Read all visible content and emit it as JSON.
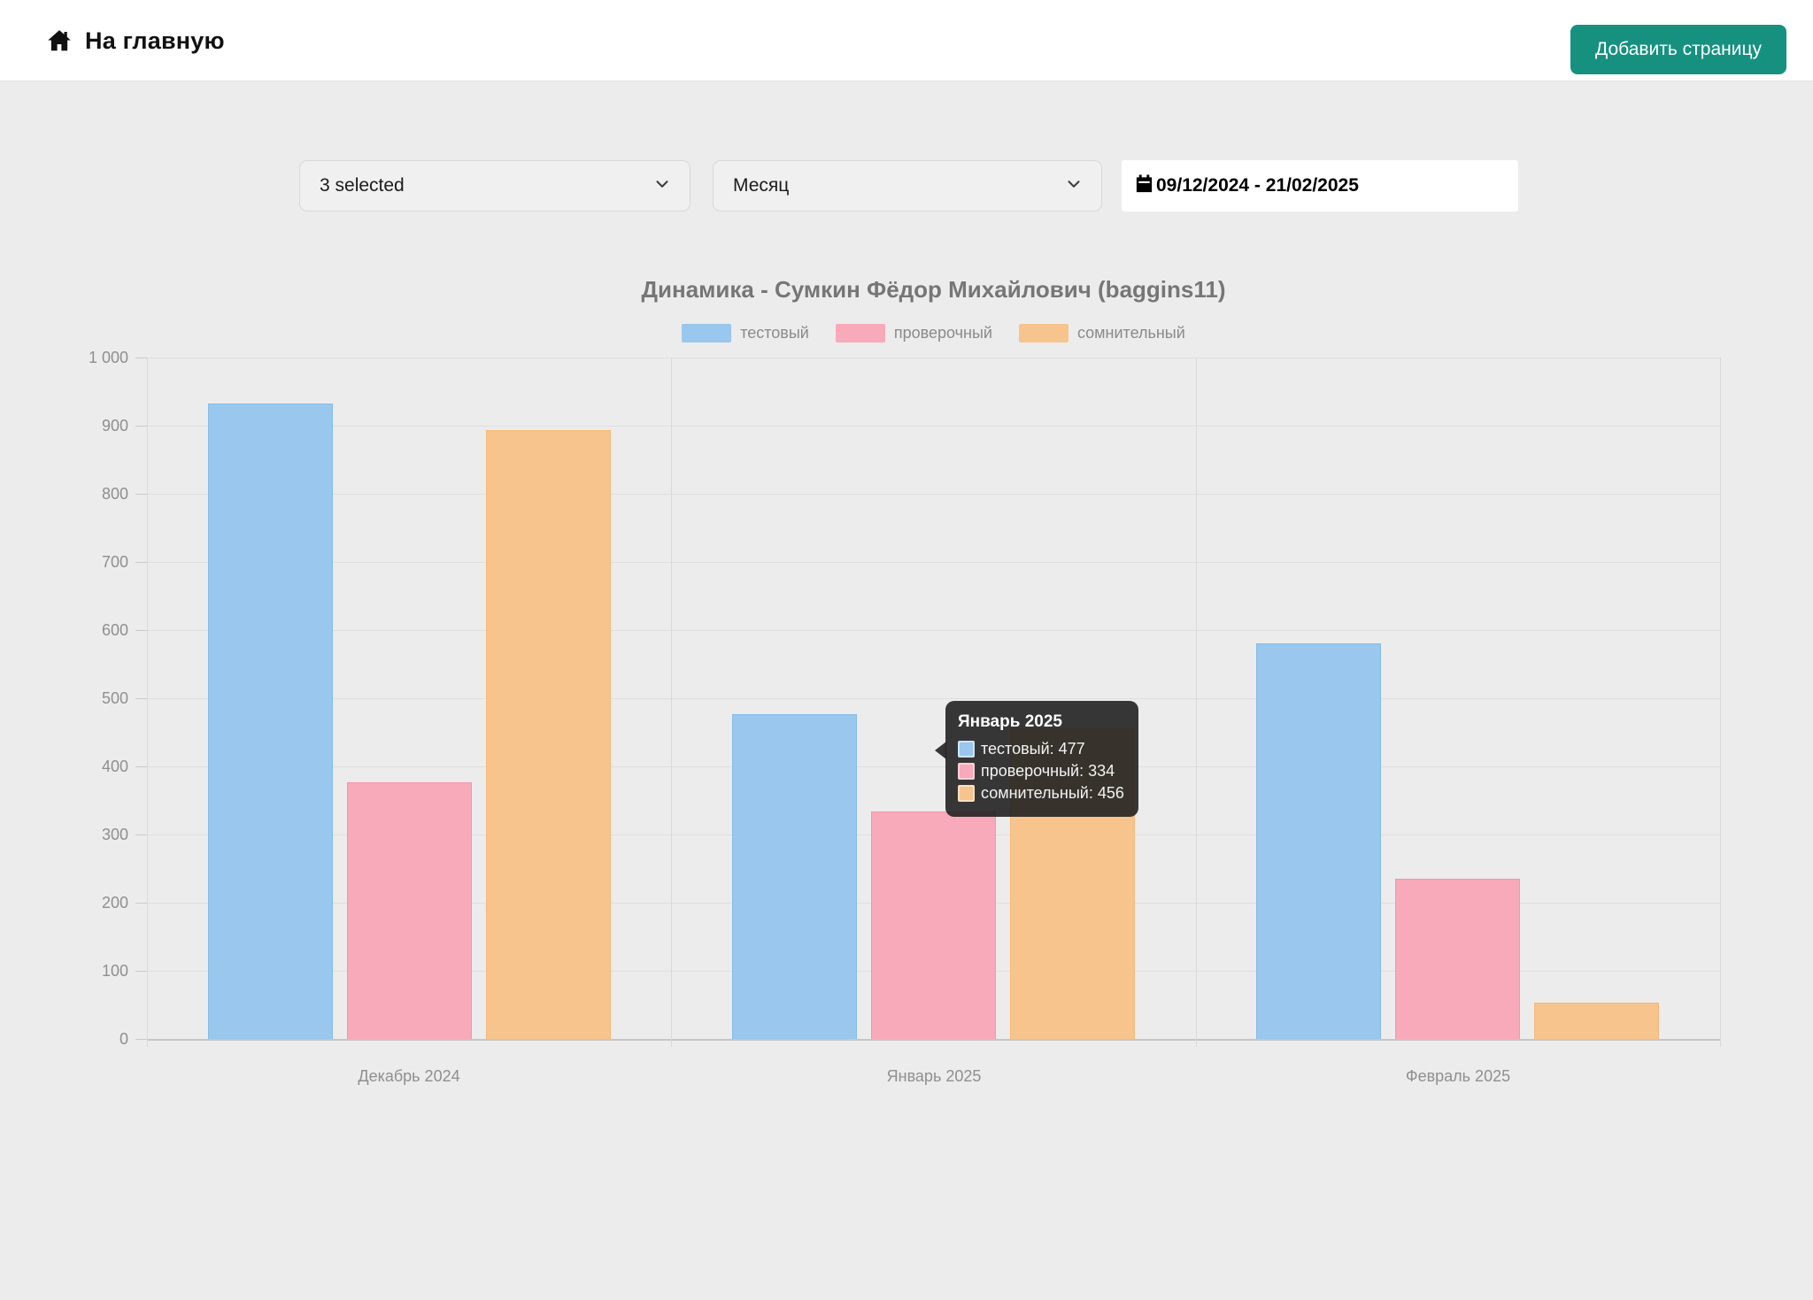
{
  "header": {
    "home_label": "На главную",
    "add_page_button": "Добавить страницу"
  },
  "filters": {
    "series_select_value": "3 selected",
    "period_select_value": "Месяц",
    "date_range_value": "09/12/2024 - 21/02/2025"
  },
  "chart_data": {
    "type": "bar",
    "title": "Динамика - Сумкин Фёдор Михайлович (baggins11)",
    "categories": [
      "Декабрь 2024",
      "Январь 2025",
      "Февраль 2025"
    ],
    "series": [
      {
        "name": "тестовый",
        "color": "#99c7ed",
        "border": "#86bce8",
        "swatch_border": "#cde5f7",
        "values": [
          933,
          477,
          580
        ]
      },
      {
        "name": "проверочный",
        "color": "#f8a9ba",
        "border": "#f596ab",
        "swatch_border": "#fcd2dc",
        "values": [
          377,
          334,
          235
        ]
      },
      {
        "name": "сомнительный",
        "color": "#f7c48e",
        "border": "#f4b87a",
        "swatch_border": "#fbe0c2",
        "values": [
          894,
          456,
          53
        ]
      }
    ],
    "ylim": [
      0,
      1000
    ],
    "ytick_step": 100,
    "ytick_labels": [
      "0",
      "100",
      "200",
      "300",
      "400",
      "500",
      "600",
      "700",
      "800",
      "900",
      "1 000"
    ],
    "grid": true,
    "legend_position": "top"
  },
  "tooltip": {
    "title": "Январь 2025",
    "rows": [
      {
        "label": "тестовый",
        "value": "477"
      },
      {
        "label": "проверочный",
        "value": "334"
      },
      {
        "label": "сомнительный",
        "value": "456"
      }
    ]
  }
}
